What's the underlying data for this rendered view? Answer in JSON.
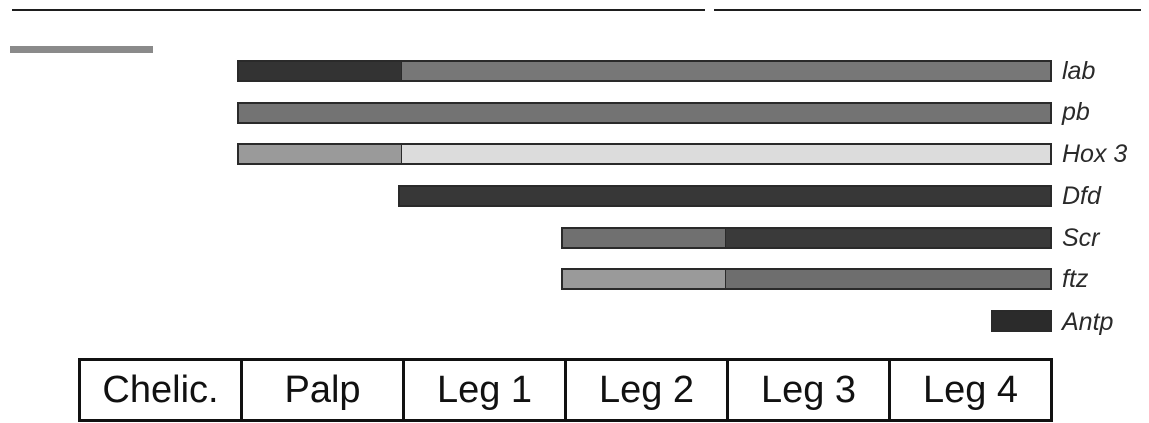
{
  "genes": [
    {
      "name": "lab",
      "segments": [
        {
          "from": "Chelic.",
          "to": "Chelic.",
          "color": "#333333"
        },
        {
          "from": "Palp",
          "to": "Leg 4",
          "color": "#777777"
        }
      ]
    },
    {
      "name": "pb",
      "segments": [
        {
          "from": "Chelic.",
          "to": "Leg 4",
          "color": "#737373"
        }
      ]
    },
    {
      "name": "Hox 3",
      "segments": [
        {
          "from": "Chelic.",
          "to": "Chelic.",
          "color": "#9a9a9a"
        },
        {
          "from": "Palp",
          "to": "Leg 4",
          "color": "#dcdcdc"
        }
      ]
    },
    {
      "name": "Dfd",
      "segments": [
        {
          "from": "Palp",
          "to": "Leg 4",
          "color": "#373737"
        }
      ]
    },
    {
      "name": "Scr",
      "segments": [
        {
          "from": "Leg 1",
          "to": "Leg 1",
          "color": "#707070"
        },
        {
          "from": "Leg 2",
          "to": "Leg 4",
          "color": "#3a3a3a"
        }
      ]
    },
    {
      "name": "ftz",
      "segments": [
        {
          "from": "Leg 1",
          "to": "Leg 1",
          "color": "#9a9a9a"
        },
        {
          "from": "Leg 2",
          "to": "Leg 4",
          "color": "#6e6e6e"
        }
      ]
    },
    {
      "name": "Antp",
      "segments": [
        {
          "from": "Leg 4",
          "to": "Leg 4",
          "portion": "posterior edge",
          "color": "#2b2b2b"
        }
      ]
    }
  ],
  "body_segments": [
    "Chelic.",
    "Palp",
    "Leg 1",
    "Leg 2",
    "Leg 3",
    "Leg 4"
  ]
}
